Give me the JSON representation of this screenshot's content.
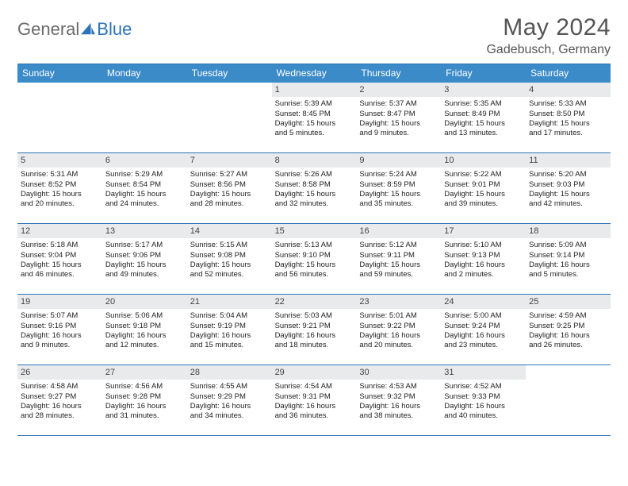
{
  "brand": {
    "part1": "General",
    "part2": "Blue"
  },
  "title": "May 2024",
  "location": "Gadebusch, Germany",
  "colors": {
    "accent": "#3b8bc9",
    "border": "#2d73b8",
    "daynum_bg": "#e9eaeb",
    "text": "#222222",
    "muted": "#555555",
    "white": "#ffffff"
  },
  "daynames": [
    "Sunday",
    "Monday",
    "Tuesday",
    "Wednesday",
    "Thursday",
    "Friday",
    "Saturday"
  ],
  "weeks": [
    [
      {
        "empty": true
      },
      {
        "empty": true
      },
      {
        "empty": true
      },
      {
        "day": "1",
        "sunrise": "Sunrise: 5:39 AM",
        "sunset": "Sunset: 8:45 PM",
        "daylight1": "Daylight: 15 hours",
        "daylight2": "and 5 minutes."
      },
      {
        "day": "2",
        "sunrise": "Sunrise: 5:37 AM",
        "sunset": "Sunset: 8:47 PM",
        "daylight1": "Daylight: 15 hours",
        "daylight2": "and 9 minutes."
      },
      {
        "day": "3",
        "sunrise": "Sunrise: 5:35 AM",
        "sunset": "Sunset: 8:49 PM",
        "daylight1": "Daylight: 15 hours",
        "daylight2": "and 13 minutes."
      },
      {
        "day": "4",
        "sunrise": "Sunrise: 5:33 AM",
        "sunset": "Sunset: 8:50 PM",
        "daylight1": "Daylight: 15 hours",
        "daylight2": "and 17 minutes."
      }
    ],
    [
      {
        "day": "5",
        "sunrise": "Sunrise: 5:31 AM",
        "sunset": "Sunset: 8:52 PM",
        "daylight1": "Daylight: 15 hours",
        "daylight2": "and 20 minutes."
      },
      {
        "day": "6",
        "sunrise": "Sunrise: 5:29 AM",
        "sunset": "Sunset: 8:54 PM",
        "daylight1": "Daylight: 15 hours",
        "daylight2": "and 24 minutes."
      },
      {
        "day": "7",
        "sunrise": "Sunrise: 5:27 AM",
        "sunset": "Sunset: 8:56 PM",
        "daylight1": "Daylight: 15 hours",
        "daylight2": "and 28 minutes."
      },
      {
        "day": "8",
        "sunrise": "Sunrise: 5:26 AM",
        "sunset": "Sunset: 8:58 PM",
        "daylight1": "Daylight: 15 hours",
        "daylight2": "and 32 minutes."
      },
      {
        "day": "9",
        "sunrise": "Sunrise: 5:24 AM",
        "sunset": "Sunset: 8:59 PM",
        "daylight1": "Daylight: 15 hours",
        "daylight2": "and 35 minutes."
      },
      {
        "day": "10",
        "sunrise": "Sunrise: 5:22 AM",
        "sunset": "Sunset: 9:01 PM",
        "daylight1": "Daylight: 15 hours",
        "daylight2": "and 39 minutes."
      },
      {
        "day": "11",
        "sunrise": "Sunrise: 5:20 AM",
        "sunset": "Sunset: 9:03 PM",
        "daylight1": "Daylight: 15 hours",
        "daylight2": "and 42 minutes."
      }
    ],
    [
      {
        "day": "12",
        "sunrise": "Sunrise: 5:18 AM",
        "sunset": "Sunset: 9:04 PM",
        "daylight1": "Daylight: 15 hours",
        "daylight2": "and 46 minutes."
      },
      {
        "day": "13",
        "sunrise": "Sunrise: 5:17 AM",
        "sunset": "Sunset: 9:06 PM",
        "daylight1": "Daylight: 15 hours",
        "daylight2": "and 49 minutes."
      },
      {
        "day": "14",
        "sunrise": "Sunrise: 5:15 AM",
        "sunset": "Sunset: 9:08 PM",
        "daylight1": "Daylight: 15 hours",
        "daylight2": "and 52 minutes."
      },
      {
        "day": "15",
        "sunrise": "Sunrise: 5:13 AM",
        "sunset": "Sunset: 9:10 PM",
        "daylight1": "Daylight: 15 hours",
        "daylight2": "and 56 minutes."
      },
      {
        "day": "16",
        "sunrise": "Sunrise: 5:12 AM",
        "sunset": "Sunset: 9:11 PM",
        "daylight1": "Daylight: 15 hours",
        "daylight2": "and 59 minutes."
      },
      {
        "day": "17",
        "sunrise": "Sunrise: 5:10 AM",
        "sunset": "Sunset: 9:13 PM",
        "daylight1": "Daylight: 16 hours",
        "daylight2": "and 2 minutes."
      },
      {
        "day": "18",
        "sunrise": "Sunrise: 5:09 AM",
        "sunset": "Sunset: 9:14 PM",
        "daylight1": "Daylight: 16 hours",
        "daylight2": "and 5 minutes."
      }
    ],
    [
      {
        "day": "19",
        "sunrise": "Sunrise: 5:07 AM",
        "sunset": "Sunset: 9:16 PM",
        "daylight1": "Daylight: 16 hours",
        "daylight2": "and 9 minutes."
      },
      {
        "day": "20",
        "sunrise": "Sunrise: 5:06 AM",
        "sunset": "Sunset: 9:18 PM",
        "daylight1": "Daylight: 16 hours",
        "daylight2": "and 12 minutes."
      },
      {
        "day": "21",
        "sunrise": "Sunrise: 5:04 AM",
        "sunset": "Sunset: 9:19 PM",
        "daylight1": "Daylight: 16 hours",
        "daylight2": "and 15 minutes."
      },
      {
        "day": "22",
        "sunrise": "Sunrise: 5:03 AM",
        "sunset": "Sunset: 9:21 PM",
        "daylight1": "Daylight: 16 hours",
        "daylight2": "and 18 minutes."
      },
      {
        "day": "23",
        "sunrise": "Sunrise: 5:01 AM",
        "sunset": "Sunset: 9:22 PM",
        "daylight1": "Daylight: 16 hours",
        "daylight2": "and 20 minutes."
      },
      {
        "day": "24",
        "sunrise": "Sunrise: 5:00 AM",
        "sunset": "Sunset: 9:24 PM",
        "daylight1": "Daylight: 16 hours",
        "daylight2": "and 23 minutes."
      },
      {
        "day": "25",
        "sunrise": "Sunrise: 4:59 AM",
        "sunset": "Sunset: 9:25 PM",
        "daylight1": "Daylight: 16 hours",
        "daylight2": "and 26 minutes."
      }
    ],
    [
      {
        "day": "26",
        "sunrise": "Sunrise: 4:58 AM",
        "sunset": "Sunset: 9:27 PM",
        "daylight1": "Daylight: 16 hours",
        "daylight2": "and 28 minutes."
      },
      {
        "day": "27",
        "sunrise": "Sunrise: 4:56 AM",
        "sunset": "Sunset: 9:28 PM",
        "daylight1": "Daylight: 16 hours",
        "daylight2": "and 31 minutes."
      },
      {
        "day": "28",
        "sunrise": "Sunrise: 4:55 AM",
        "sunset": "Sunset: 9:29 PM",
        "daylight1": "Daylight: 16 hours",
        "daylight2": "and 34 minutes."
      },
      {
        "day": "29",
        "sunrise": "Sunrise: 4:54 AM",
        "sunset": "Sunset: 9:31 PM",
        "daylight1": "Daylight: 16 hours",
        "daylight2": "and 36 minutes."
      },
      {
        "day": "30",
        "sunrise": "Sunrise: 4:53 AM",
        "sunset": "Sunset: 9:32 PM",
        "daylight1": "Daylight: 16 hours",
        "daylight2": "and 38 minutes."
      },
      {
        "day": "31",
        "sunrise": "Sunrise: 4:52 AM",
        "sunset": "Sunset: 9:33 PM",
        "daylight1": "Daylight: 16 hours",
        "daylight2": "and 40 minutes."
      },
      {
        "empty": true
      }
    ]
  ]
}
